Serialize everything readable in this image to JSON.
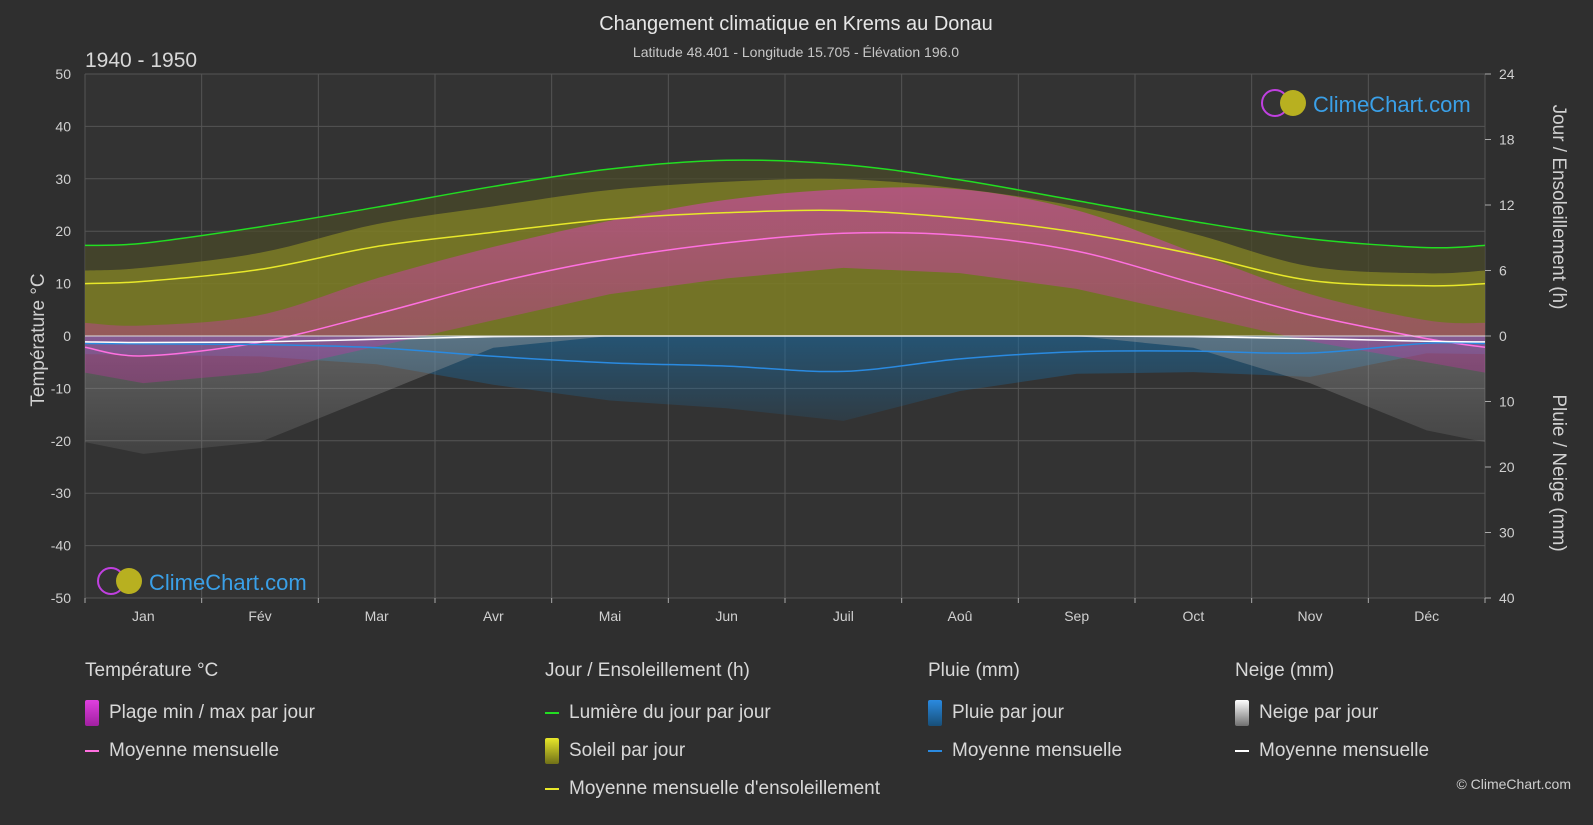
{
  "chart_data": {
    "type": "area",
    "title": "Changement climatique en Krems au Donau",
    "subtitle": "Latitude 48.401 - Longitude 15.705 - Élévation 196.0",
    "period": "1940 - 1950",
    "watermark": "ClimeChart.com",
    "copyright": "© ClimeChart.com",
    "categories": [
      "Jan",
      "Fév",
      "Mar",
      "Avr",
      "Mai",
      "Jun",
      "Juil",
      "Aoû",
      "Sep",
      "Oct",
      "Nov",
      "Déc"
    ],
    "y_left": {
      "label": "Température °C",
      "range": [
        -50,
        50
      ],
      "ticks": [
        50,
        40,
        30,
        20,
        10,
        0,
        -10,
        -20,
        -30,
        -40,
        -50
      ]
    },
    "y_right_top": {
      "label": "Jour / Ensoleillement (h)",
      "range": [
        0,
        24
      ],
      "ticks": [
        24,
        18,
        12,
        6,
        0
      ]
    },
    "y_right_bottom": {
      "label": "Pluie / Neige (mm)",
      "range": [
        0,
        40
      ],
      "ticks": [
        0,
        10,
        20,
        30,
        40
      ]
    },
    "grid": true,
    "series": {
      "daylight_hours": [
        8.5,
        10.0,
        11.8,
        13.7,
        15.3,
        16.1,
        15.7,
        14.3,
        12.4,
        10.5,
        8.9,
        8.1
      ],
      "sunshine_mean_hours": [
        5.0,
        6.1,
        8.2,
        9.5,
        10.7,
        11.3,
        11.5,
        10.8,
        9.5,
        7.5,
        5.1,
        4.6
      ],
      "temp_mean_c": [
        -3.8,
        -1.2,
        4.2,
        10.1,
        14.7,
        17.8,
        19.6,
        19.2,
        16.2,
        10.1,
        4.0,
        -0.5
      ],
      "temp_max_c": [
        2,
        4,
        11,
        17,
        22,
        26,
        28,
        28,
        24,
        16,
        8,
        3
      ],
      "temp_min_c": [
        -9,
        -7,
        -2,
        3,
        8,
        11,
        13,
        12,
        9,
        4,
        -1,
        -5
      ],
      "rain_mean_mm": [
        1.2,
        1.3,
        1.8,
        3.1,
        4.1,
        4.6,
        5.4,
        3.5,
        2.4,
        2.3,
        2.6,
        1.1
      ],
      "snow_mean_mm": [
        1.0,
        0.9,
        0.5,
        0.1,
        0.0,
        0.0,
        0.0,
        0.0,
        0.0,
        0.1,
        0.4,
        0.8
      ]
    },
    "colors": {
      "background": "#2f2f2f",
      "grid": "#555555",
      "daylight": "#22dd22",
      "sunshine_fill": "#9a9a22",
      "sunshine_mean": "#e8e82a",
      "temp_range": "#d040b0",
      "temp_mean": "#ff70e0",
      "rain": "#1a6fa8",
      "rain_mean": "#2a8ae0",
      "snow": "#8a8a8a",
      "snow_mean": "#ffffff"
    }
  },
  "legend": {
    "temperature": {
      "title": "Température °C",
      "range_label": "Plage min / max par jour",
      "mean_label": "Moyenne mensuelle"
    },
    "daylight": {
      "title": "Jour / Ensoleillement (h)",
      "daylight_label": "Lumière du jour par jour",
      "sunshine_label": "Soleil par jour",
      "sunshine_mean_label": "Moyenne mensuelle d'ensoleillement"
    },
    "rain": {
      "title": "Pluie (mm)",
      "rain_label": "Pluie par jour",
      "mean_label": "Moyenne mensuelle"
    },
    "snow": {
      "title": "Neige (mm)",
      "snow_label": "Neige par jour",
      "mean_label": "Moyenne mensuelle"
    }
  }
}
